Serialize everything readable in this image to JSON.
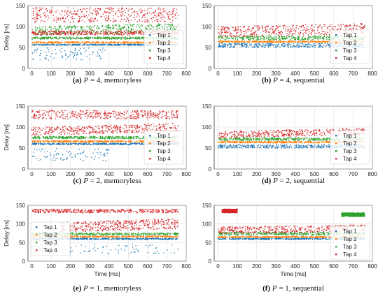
{
  "colors": {
    "tap1": "#1f77b4",
    "tap2": "#ff7f0e",
    "tap3": "#2ca02c",
    "tap4": "#d62728",
    "grid": "#dcdcdc",
    "axis": "#333333"
  },
  "chart_data": [
    {
      "type": "scatter",
      "caption": {
        "letter": "(a)",
        "var": "P",
        "eq": " = 4,",
        "text": " memoryless"
      },
      "ylabel": "Delay [ns]",
      "xlabel": "",
      "xlim": [
        -20,
        800
      ],
      "ylim": [
        0,
        150
      ],
      "xticks": [
        0,
        100,
        200,
        300,
        400,
        500,
        600,
        700,
        800
      ],
      "yticks": [
        0,
        50,
        100,
        150
      ],
      "legend": "right",
      "series": [
        {
          "name": "Tap 1",
          "bands": [
            {
              "y": [
                55,
                58
              ],
              "x": [
                0,
                760
              ]
            },
            {
              "y": [
                20,
                50
              ],
              "x": [
                0,
                380
              ],
              "sparse": true
            }
          ]
        },
        {
          "name": "Tap 2",
          "bands": [
            {
              "y": [
                60,
                64
              ],
              "x": [
                0,
                760
              ]
            }
          ]
        },
        {
          "name": "Tap 3",
          "bands": [
            {
              "y": [
                70,
                75
              ],
              "x": [
                0,
                760
              ]
            },
            {
              "y": [
                78,
                100
              ],
              "x": [
                0,
                760
              ],
              "slope": 0.02
            }
          ]
        },
        {
          "name": "Tap 4",
          "bands": [
            {
              "y": [
                80,
                90
              ],
              "x": [
                0,
                760
              ]
            },
            {
              "y": [
                110,
                145
              ],
              "x": [
                0,
                760
              ]
            }
          ]
        }
      ]
    },
    {
      "type": "scatter",
      "caption": {
        "letter": "(b)",
        "var": "P",
        "eq": " = 4,",
        "text": " sequential"
      },
      "ylabel": "",
      "xlabel": "",
      "xlim": [
        -20,
        800
      ],
      "ylim": [
        0,
        150
      ],
      "xticks": [
        0,
        100,
        200,
        300,
        400,
        500,
        600,
        700,
        800
      ],
      "yticks": [
        0,
        50,
        100,
        150
      ],
      "legend": "right",
      "series": [
        {
          "name": "Tap 1",
          "bands": [
            {
              "y": [
                50,
                60
              ],
              "x": [
                0,
                760
              ]
            }
          ]
        },
        {
          "name": "Tap 2",
          "bands": [
            {
              "y": [
                62,
                66
              ],
              "x": [
                0,
                760
              ]
            }
          ]
        },
        {
          "name": "Tap 3",
          "bands": [
            {
              "y": [
                68,
                78
              ],
              "x": [
                0,
                760
              ]
            }
          ]
        },
        {
          "name": "Tap 4",
          "bands": [
            {
              "y": [
                75,
                100
              ],
              "x": [
                0,
                760
              ],
              "slope": 0.02
            }
          ]
        }
      ]
    },
    {
      "type": "scatter",
      "caption": {
        "letter": "(c)",
        "var": "P",
        "eq": " = 2,",
        "text": " memoryless"
      },
      "ylabel": "Delay [ns]",
      "xlabel": "",
      "xlim": [
        -20,
        800
      ],
      "ylim": [
        0,
        150
      ],
      "xticks": [
        0,
        100,
        200,
        300,
        400,
        500,
        600,
        700,
        800
      ],
      "yticks": [
        0,
        50,
        100,
        150
      ],
      "legend": "right",
      "series": [
        {
          "name": "Tap 1",
          "bands": [
            {
              "y": [
                58,
                62
              ],
              "x": [
                0,
                760
              ]
            },
            {
              "y": [
                20,
                50
              ],
              "x": [
                0,
                400
              ],
              "sparse": true
            }
          ]
        },
        {
          "name": "Tap 2",
          "bands": [
            {
              "y": [
                64,
                68
              ],
              "x": [
                0,
                760
              ]
            }
          ]
        },
        {
          "name": "Tap 3",
          "bands": [
            {
              "y": [
                72,
                78
              ],
              "x": [
                0,
                760
              ]
            }
          ]
        },
        {
          "name": "Tap 4",
          "bands": [
            {
              "y": [
                80,
                100
              ],
              "x": [
                0,
                760
              ],
              "slope": 0.025
            },
            {
              "y": [
                120,
                140
              ],
              "x": [
                0,
                760
              ]
            }
          ]
        }
      ]
    },
    {
      "type": "scatter",
      "caption": {
        "letter": "(d)",
        "var": "P",
        "eq": " = 2,",
        "text": " sequential"
      },
      "ylabel": "",
      "xlabel": "",
      "xlim": [
        -20,
        800
      ],
      "ylim": [
        0,
        150
      ],
      "xticks": [
        0,
        100,
        200,
        300,
        400,
        500,
        600,
        700,
        800
      ],
      "yticks": [
        0,
        50,
        100,
        150
      ],
      "legend": "right",
      "series": [
        {
          "name": "Tap 1",
          "bands": [
            {
              "y": [
                50,
                58
              ],
              "x": [
                0,
                760
              ]
            }
          ]
        },
        {
          "name": "Tap 2",
          "bands": [
            {
              "y": [
                62,
                66
              ],
              "x": [
                0,
                760
              ]
            }
          ]
        },
        {
          "name": "Tap 3",
          "bands": [
            {
              "y": [
                68,
                75
              ],
              "x": [
                0,
                760
              ]
            }
          ]
        },
        {
          "name": "Tap 4",
          "bands": [
            {
              "y": [
                74,
                90
              ],
              "x": [
                0,
                760
              ],
              "slope": 0.02
            }
          ]
        }
      ]
    },
    {
      "type": "scatter",
      "caption": {
        "letter": "(e)",
        "var": "P",
        "eq": " = 1,",
        "text": " memoryless"
      },
      "ylabel": "Delay [ns]",
      "xlabel": "Time [ms]",
      "xlim": [
        -20,
        800
      ],
      "ylim": [
        0,
        150
      ],
      "xticks": [
        0,
        100,
        200,
        300,
        400,
        500,
        600,
        700,
        800
      ],
      "yticks": [
        0,
        50,
        100,
        150
      ],
      "legend": "left",
      "series": [
        {
          "name": "Tap 1",
          "bands": [
            {
              "y": [
                58,
                62
              ],
              "x": [
                0,
                760
              ]
            },
            {
              "y": [
                20,
                45
              ],
              "x": [
                0,
                760
              ],
              "sparse": true
            }
          ]
        },
        {
          "name": "Tap 2",
          "bands": [
            {
              "y": [
                64,
                68
              ],
              "x": [
                0,
                760
              ]
            }
          ]
        },
        {
          "name": "Tap 3",
          "bands": [
            {
              "y": [
                70,
                76
              ],
              "x": [
                0,
                760
              ]
            }
          ]
        },
        {
          "name": "Tap 4",
          "bands": [
            {
              "y": [
                78,
                105
              ],
              "x": [
                150,
                760
              ],
              "slope": 0.03
            },
            {
              "y": [
                130,
                140
              ],
              "x": [
                0,
                760
              ]
            }
          ]
        }
      ]
    },
    {
      "type": "scatter",
      "caption": {
        "letter": "(f)",
        "var": "P",
        "eq": " = 1,",
        "text": " sequential"
      },
      "ylabel": "",
      "xlabel": "Time [ms]",
      "xlim": [
        -20,
        800
      ],
      "ylim": [
        0,
        150
      ],
      "xticks": [
        0,
        100,
        200,
        300,
        400,
        500,
        600,
        700,
        800
      ],
      "yticks": [
        0,
        50,
        100,
        150
      ],
      "legend": "right",
      "series": [
        {
          "name": "Tap 1",
          "bands": [
            {
              "y": [
                58,
                62
              ],
              "x": [
                0,
                760
              ]
            }
          ]
        },
        {
          "name": "Tap 2",
          "bands": [
            {
              "y": [
                63,
                67
              ],
              "x": [
                0,
                760
              ]
            }
          ]
        },
        {
          "name": "Tap 3",
          "bands": [
            {
              "y": [
                70,
                78
              ],
              "x": [
                0,
                760
              ]
            },
            {
              "y": [
                120,
                130
              ],
              "x": [
                640,
                760
              ]
            }
          ]
        },
        {
          "name": "Tap 4",
          "bands": [
            {
              "y": [
                74,
                92
              ],
              "x": [
                0,
                760
              ],
              "slope": 0.015
            },
            {
              "y": [
                130,
                140
              ],
              "x": [
                20,
                100
              ]
            }
          ]
        }
      ]
    }
  ]
}
